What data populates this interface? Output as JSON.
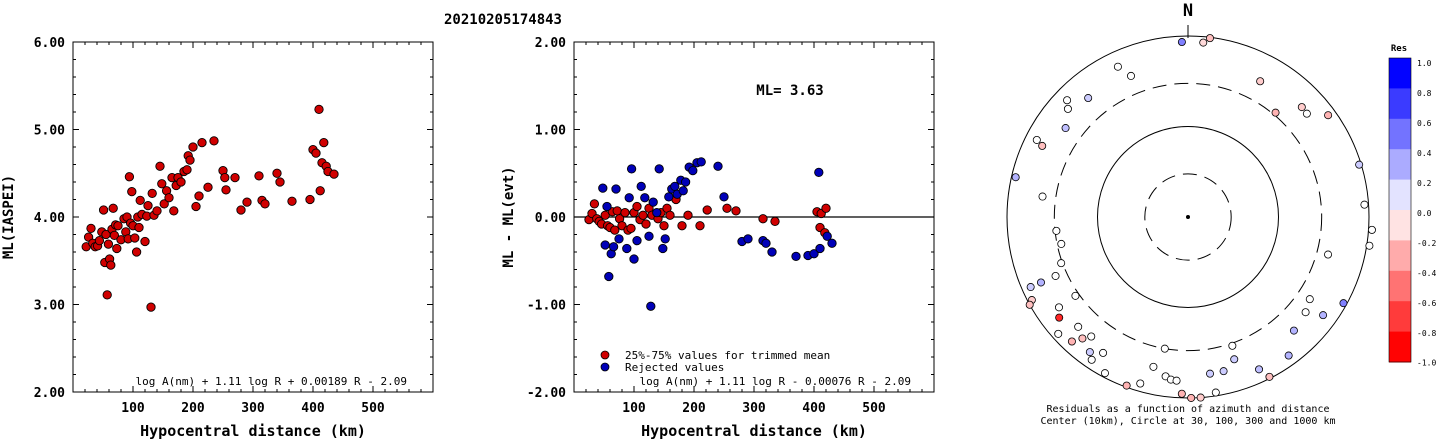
{
  "title": "20210205174843",
  "chart_data": [
    {
      "type": "scatter",
      "id": "ml-vs-distance",
      "xlabel": "Hypocentral distance (km)",
      "ylabel": "ML(IASPEI)",
      "xlim": [
        0,
        600
      ],
      "ylim": [
        2.0,
        6.0
      ],
      "x_ticks": [
        "100",
        "200",
        "300",
        "400",
        "500"
      ],
      "y_ticks": [
        "2.00",
        "3.00",
        "4.00",
        "5.00",
        "6.00"
      ],
      "formula": "log A(nm) + 1.11 log R + 0.00189 R - 2.09",
      "series": [
        {
          "color": "#d00000",
          "points": [
            [
              22,
              3.66
            ],
            [
              26,
              3.77
            ],
            [
              30,
              3.87
            ],
            [
              33,
              3.7
            ],
            [
              37,
              3.66
            ],
            [
              41,
              3.67
            ],
            [
              44,
              3.73
            ],
            [
              48,
              3.83
            ],
            [
              51,
              4.08
            ],
            [
              53,
              3.48
            ],
            [
              55,
              3.8
            ],
            [
              57,
              3.11
            ],
            [
              59,
              3.69
            ],
            [
              61,
              3.52
            ],
            [
              63,
              3.45
            ],
            [
              65,
              3.86
            ],
            [
              67,
              4.1
            ],
            [
              69,
              3.79
            ],
            [
              71,
              3.91
            ],
            [
              73,
              3.64
            ],
            [
              75,
              3.9
            ],
            [
              80,
              3.74
            ],
            [
              85,
              3.98
            ],
            [
              88,
              3.83
            ],
            [
              90,
              4.0
            ],
            [
              92,
              3.75
            ],
            [
              94,
              4.46
            ],
            [
              96,
              3.93
            ],
            [
              98,
              4.29
            ],
            [
              100,
              3.9
            ],
            [
              103,
              3.76
            ],
            [
              106,
              3.6
            ],
            [
              108,
              4.0
            ],
            [
              110,
              3.88
            ],
            [
              112,
              4.19
            ],
            [
              115,
              4.03
            ],
            [
              120,
              3.72
            ],
            [
              123,
              4.01
            ],
            [
              125,
              4.13
            ],
            [
              130,
              2.97
            ],
            [
              132,
              4.27
            ],
            [
              135,
              4.02
            ],
            [
              140,
              4.07
            ],
            [
              145,
              4.58
            ],
            [
              148,
              4.38
            ],
            [
              152,
              4.15
            ],
            [
              156,
              4.3
            ],
            [
              160,
              4.22
            ],
            [
              165,
              4.45
            ],
            [
              168,
              4.07
            ],
            [
              172,
              4.36
            ],
            [
              175,
              4.45
            ],
            [
              180,
              4.4
            ],
            [
              185,
              4.52
            ],
            [
              190,
              4.54
            ],
            [
              192,
              4.7
            ],
            [
              195,
              4.65
            ],
            [
              200,
              4.8
            ],
            [
              205,
              4.12
            ],
            [
              210,
              4.24
            ],
            [
              215,
              4.85
            ],
            [
              225,
              4.34
            ],
            [
              235,
              4.87
            ],
            [
              250,
              4.53
            ],
            [
              253,
              4.45
            ],
            [
              255,
              4.31
            ],
            [
              270,
              4.45
            ],
            [
              280,
              4.08
            ],
            [
              290,
              4.17
            ],
            [
              310,
              4.47
            ],
            [
              315,
              4.19
            ],
            [
              320,
              4.15
            ],
            [
              340,
              4.5
            ],
            [
              345,
              4.4
            ],
            [
              365,
              4.18
            ],
            [
              395,
              4.2
            ],
            [
              400,
              4.77
            ],
            [
              405,
              4.73
            ],
            [
              410,
              5.23
            ],
            [
              412,
              4.3
            ],
            [
              415,
              4.62
            ],
            [
              418,
              4.85
            ],
            [
              422,
              4.58
            ],
            [
              425,
              4.52
            ],
            [
              435,
              4.49
            ]
          ]
        }
      ]
    },
    {
      "type": "scatter",
      "id": "residual-vs-distance",
      "xlabel": "Hypocentral distance (km)",
      "ylabel": "ML - ML(evt)",
      "xlim": [
        0,
        600
      ],
      "ylim": [
        -2.0,
        2.0
      ],
      "x_ticks": [
        "100",
        "200",
        "300",
        "400",
        "500"
      ],
      "y_ticks": [
        "-2.00",
        "-1.00",
        "0.00",
        "1.00",
        "2.00"
      ],
      "ml_label": "ML= 3.63",
      "reference_line": 0.0,
      "formula": "log A(nm) + 1.11 log R - 0.00076 R - 2.09",
      "legend": [
        "25%-75% values for trimmed mean",
        "Rejected values"
      ],
      "series": [
        {
          "name": "25%-75% values for trimmed mean",
          "color": "#d00000",
          "points": [
            [
              25,
              -0.03
            ],
            [
              30,
              0.04
            ],
            [
              34,
              0.15
            ],
            [
              38,
              -0.02
            ],
            [
              42,
              -0.05
            ],
            [
              46,
              -0.08
            ],
            [
              52,
              0.02
            ],
            [
              56,
              -0.1
            ],
            [
              60,
              -0.12
            ],
            [
              64,
              0.06
            ],
            [
              68,
              -0.15
            ],
            [
              72,
              0.07
            ],
            [
              76,
              -0.02
            ],
            [
              80,
              -0.1
            ],
            [
              85,
              0.05
            ],
            [
              90,
              -0.15
            ],
            [
              95,
              -0.13
            ],
            [
              100,
              0.05
            ],
            [
              105,
              0.12
            ],
            [
              110,
              -0.03
            ],
            [
              115,
              0.02
            ],
            [
              120,
              -0.08
            ],
            [
              125,
              0.1
            ],
            [
              130,
              0.02
            ],
            [
              140,
              -0.02
            ],
            [
              145,
              0.05
            ],
            [
              150,
              -0.1
            ],
            [
              155,
              0.1
            ],
            [
              160,
              0.02
            ],
            [
              170,
              0.2
            ],
            [
              180,
              -0.1
            ],
            [
              190,
              0.02
            ],
            [
              210,
              -0.1
            ],
            [
              222,
              0.08
            ],
            [
              255,
              0.1
            ],
            [
              270,
              0.07
            ],
            [
              315,
              -0.02
            ],
            [
              335,
              -0.05
            ],
            [
              405,
              0.06
            ],
            [
              410,
              -0.12
            ],
            [
              412,
              0.04
            ],
            [
              418,
              -0.18
            ],
            [
              420,
              0.1
            ]
          ]
        },
        {
          "name": "Rejected values",
          "color": "#0000b8",
          "points": [
            [
              48,
              0.33
            ],
            [
              52,
              -0.32
            ],
            [
              55,
              0.12
            ],
            [
              58,
              -0.68
            ],
            [
              62,
              -0.42
            ],
            [
              66,
              -0.34
            ],
            [
              70,
              0.32
            ],
            [
              75,
              -0.25
            ],
            [
              88,
              -0.36
            ],
            [
              92,
              0.22
            ],
            [
              96,
              0.55
            ],
            [
              100,
              -0.48
            ],
            [
              105,
              -0.27
            ],
            [
              112,
              0.35
            ],
            [
              118,
              0.22
            ],
            [
              125,
              -0.22
            ],
            [
              128,
              -1.02
            ],
            [
              132,
              0.17
            ],
            [
              138,
              0.05
            ],
            [
              142,
              0.55
            ],
            [
              148,
              -0.36
            ],
            [
              152,
              -0.25
            ],
            [
              158,
              0.23
            ],
            [
              163,
              0.32
            ],
            [
              168,
              0.35
            ],
            [
              172,
              0.26
            ],
            [
              178,
              0.42
            ],
            [
              182,
              0.3
            ],
            [
              186,
              0.4
            ],
            [
              192,
              0.57
            ],
            [
              198,
              0.53
            ],
            [
              205,
              0.62
            ],
            [
              212,
              0.63
            ],
            [
              240,
              0.58
            ],
            [
              250,
              0.23
            ],
            [
              280,
              -0.28
            ],
            [
              290,
              -0.25
            ],
            [
              315,
              -0.27
            ],
            [
              320,
              -0.3
            ],
            [
              330,
              -0.4
            ],
            [
              370,
              -0.45
            ],
            [
              390,
              -0.44
            ],
            [
              400,
              -0.42
            ],
            [
              408,
              0.51
            ],
            [
              410,
              -0.36
            ],
            [
              422,
              -0.22
            ],
            [
              430,
              -0.3
            ]
          ]
        }
      ]
    },
    {
      "type": "polar",
      "id": "azimuth-residuals",
      "north_label": "N",
      "caption_lines": [
        "Residuals as a function of azimuth and distance",
        "Center (10km), Circle at 30, 100, 300 and 1000 km"
      ],
      "rings_km": [
        30,
        100,
        300,
        1000
      ],
      "colorbar": {
        "title": "Res",
        "ticks": [
          "1.0",
          "0.8",
          "0.6",
          "0.4",
          "0.2",
          "0.0",
          "-0.2",
          "-0.4",
          "-0.6",
          "-0.8",
          "-1.0"
        ],
        "positive_color": "#0000ff",
        "negative_color": "#ff0000"
      },
      "points": [
        [
          335,
          680,
          0.0
        ],
        [
          314,
          720,
          0.0
        ],
        [
          358,
          860,
          0.5
        ],
        [
          7,
          980,
          -0.25
        ],
        [
          5,
          860,
          -0.15
        ],
        [
          338,
          480,
          0.0
        ],
        [
          320,
          520,
          0.2
        ],
        [
          312,
          610,
          0.0
        ],
        [
          306,
          470,
          0.25
        ],
        [
          296,
          620,
          -0.25
        ],
        [
          283,
          900,
          0.3
        ],
        [
          297,
          750,
          0.0
        ],
        [
          278,
          420,
          0.0
        ],
        [
          264,
          290,
          0.0
        ],
        [
          258,
          270,
          0.0
        ],
        [
          250,
          310,
          0.0
        ],
        [
          246,
          400,
          0.0
        ],
        [
          246,
          600,
          0.3
        ],
        [
          246,
          800,
          0.2
        ],
        [
          242,
          900,
          -0.2
        ],
        [
          241,
          1000,
          -0.25
        ],
        [
          235,
          550,
          0.0
        ],
        [
          235,
          330,
          0.0
        ],
        [
          232,
          640,
          -0.85
        ],
        [
          228,
          850,
          0.0
        ],
        [
          225,
          520,
          0.0
        ],
        [
          223,
          760,
          -0.3
        ],
        [
          219,
          500,
          0.0
        ],
        [
          221,
          600,
          -0.25
        ],
        [
          216,
          700,
          0.2
        ],
        [
          212,
          590,
          0.0
        ],
        [
          214,
          800,
          0.0
        ],
        [
          208,
          900,
          0.0
        ],
        [
          200,
          960,
          -0.3
        ],
        [
          196,
          820,
          0.0
        ],
        [
          193,
          500,
          0.0
        ],
        [
          190,
          300,
          0.0
        ],
        [
          188,
          600,
          0.0
        ],
        [
          186,
          640,
          0.0
        ],
        [
          184,
          650,
          0.0
        ],
        [
          182,
          900,
          -0.3
        ],
        [
          179,
          1000,
          -0.3
        ],
        [
          176,
          1000,
          -0.2
        ],
        [
          172,
          560,
          0.2
        ],
        [
          171,
          920,
          0.0
        ],
        [
          167,
          560,
          0.2
        ],
        [
          162,
          450,
          0.2
        ],
        [
          161,
          320,
          0.0
        ],
        [
          155,
          720,
          0.25
        ],
        [
          153,
          960,
          -0.25
        ],
        [
          144,
          780,
          0.3
        ],
        [
          137,
          520,
          0.3
        ],
        [
          129,
          470,
          0.0
        ],
        [
          124,
          420,
          0.0
        ],
        [
          126,
          700,
          0.3
        ],
        [
          119,
          920,
          0.5
        ],
        [
          105,
          400,
          0.0
        ],
        [
          99,
          1070,
          0.0
        ],
        [
          94,
          1090,
          0.0
        ],
        [
          86,
          900,
          0.0
        ],
        [
          73,
          950,
          0.2
        ],
        [
          54,
          820,
          -0.3
        ],
        [
          49,
          550,
          0.0
        ],
        [
          46,
          560,
          -0.2
        ],
        [
          40,
          320,
          -0.3
        ],
        [
          28,
          500,
          -0.2
        ]
      ]
    }
  ]
}
